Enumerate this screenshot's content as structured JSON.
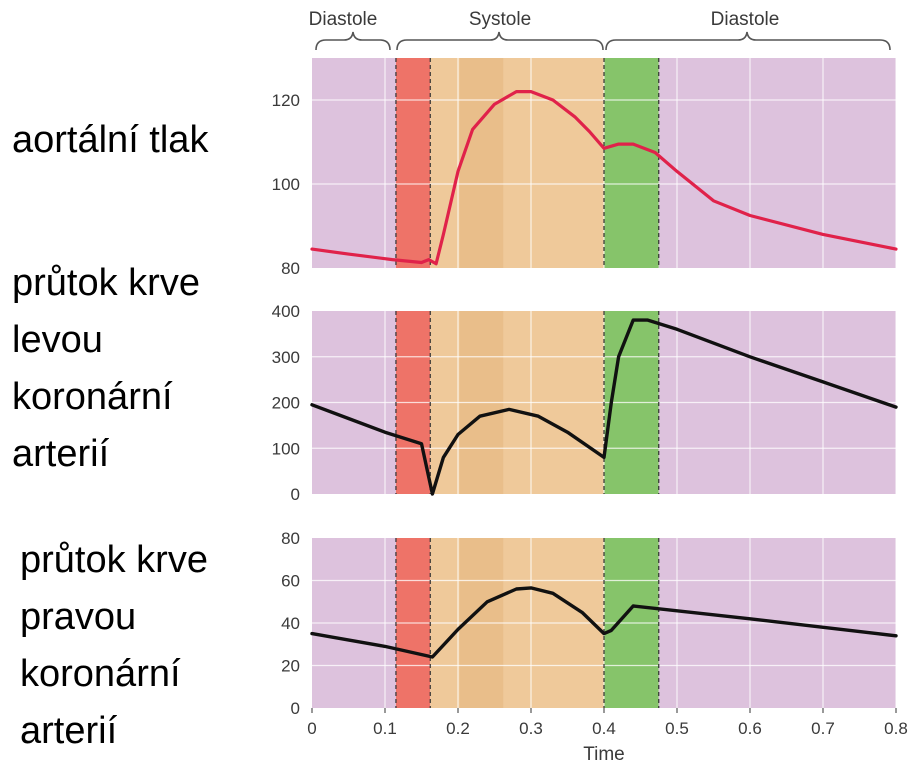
{
  "phases": [
    "Diastole",
    "Systole",
    "Diastole"
  ],
  "side_labels": {
    "aortic": "aortální tlak",
    "left": [
      "průtok krve",
      "levou",
      "koronární",
      "arterií"
    ],
    "right": [
      "průtok krve",
      "pravou",
      "koronární",
      "arterií"
    ]
  },
  "colors": {
    "diastole": "#ddc2dd",
    "isovolumic_contraction": "#ee7368",
    "ejection": "#efc99a",
    "isovolumic_relaxation": "#86c46a",
    "aortic_line": "#e0224a",
    "flow_line": "#111111"
  },
  "chart_data": [
    {
      "type": "line",
      "title": "",
      "xlabel": "",
      "ylabel": "",
      "xlim": [
        0,
        0.8
      ],
      "ylim": [
        80,
        130
      ],
      "yticks": [
        80,
        100,
        120
      ],
      "series": [
        {
          "x": [
            0,
            0.05,
            0.11,
            0.15,
            0.16,
            0.17,
            0.18,
            0.2,
            0.22,
            0.25,
            0.28,
            0.3,
            0.33,
            0.36,
            0.38,
            0.4,
            0.42,
            0.44,
            0.47,
            0.5,
            0.55,
            0.6,
            0.7,
            0.8
          ],
          "y": [
            84.5,
            83.3,
            82,
            81.3,
            82,
            81,
            88,
            103,
            113,
            119,
            122,
            122,
            120,
            116,
            112.5,
            108.5,
            109.5,
            109.5,
            107.5,
            103,
            96,
            92.5,
            88,
            84.5
          ]
        }
      ]
    },
    {
      "type": "line",
      "title": "",
      "xlabel": "",
      "ylabel": "",
      "xlim": [
        0,
        0.8
      ],
      "ylim": [
        0,
        400
      ],
      "yticks": [
        0,
        100,
        200,
        300,
        400
      ],
      "series": [
        {
          "x": [
            0,
            0.05,
            0.1,
            0.15,
            0.165,
            0.18,
            0.2,
            0.23,
            0.27,
            0.31,
            0.35,
            0.4,
            0.41,
            0.42,
            0.44,
            0.46,
            0.5,
            0.6,
            0.7,
            0.8
          ],
          "y": [
            195,
            165,
            135,
            110,
            0,
            80,
            130,
            170,
            185,
            170,
            135,
            80,
            200,
            300,
            380,
            380,
            360,
            300,
            245,
            190
          ]
        }
      ]
    },
    {
      "type": "line",
      "title": "",
      "xlabel": "Time",
      "ylabel": "",
      "xlim": [
        0,
        0.8
      ],
      "ylim": [
        0,
        80
      ],
      "xticks": [
        0,
        0.1,
        0.2,
        0.3,
        0.4,
        0.5,
        0.6,
        0.7,
        0.8
      ],
      "yticks": [
        0,
        20,
        40,
        60,
        80
      ],
      "series": [
        {
          "x": [
            0,
            0.1,
            0.165,
            0.2,
            0.24,
            0.28,
            0.3,
            0.33,
            0.37,
            0.4,
            0.41,
            0.44,
            0.6,
            0.8
          ],
          "y": [
            35,
            29,
            24,
            37,
            50,
            56,
            56.5,
            54,
            45,
            35,
            36.5,
            48,
            42,
            34
          ]
        }
      ]
    }
  ]
}
